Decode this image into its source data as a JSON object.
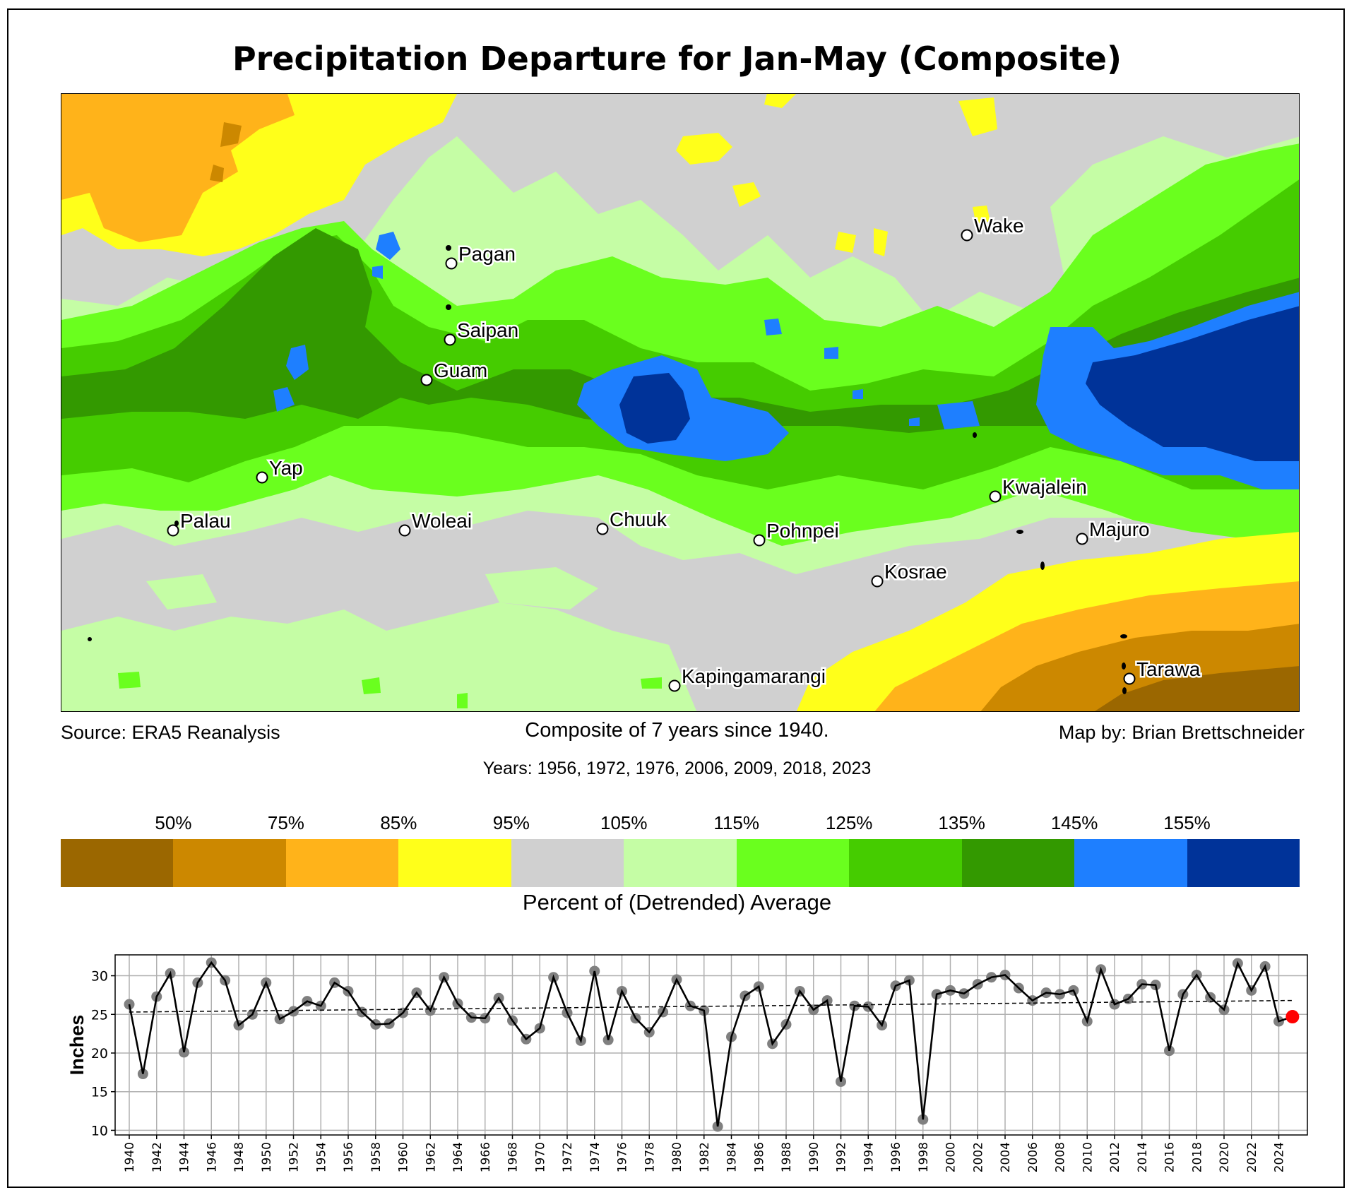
{
  "title": "Precipitation Departure for Jan-May (Composite)",
  "captions": {
    "source": "Source: ERA5 Reanalysis",
    "composite": "Composite of 7 years since 1940.",
    "map_by": "Map by: Brian Brettschneider",
    "years": "Years: 1956, 1972, 1976, 2006, 2009, 2018, 2023"
  },
  "colorbar": {
    "label": "Percent of (Detrended) Average",
    "ticks": [
      "50%",
      "75%",
      "85%",
      "95%",
      "105%",
      "115%",
      "125%",
      "135%",
      "145%",
      "155%"
    ],
    "colors": [
      "#9b6700",
      "#cc8800",
      "#ffb31a",
      "#ffff1a",
      "#d0d0d0",
      "#c5fda5",
      "#6aff1e",
      "#45cc00",
      "#339900",
      "#1e7fff",
      "#003399"
    ]
  },
  "stations": [
    {
      "name": "Pagan"
    },
    {
      "name": "Saipan"
    },
    {
      "name": "Guam"
    },
    {
      "name": "Wake"
    },
    {
      "name": "Yap"
    },
    {
      "name": "Palau"
    },
    {
      "name": "Woleai"
    },
    {
      "name": "Chuuk"
    },
    {
      "name": "Pohnpei"
    },
    {
      "name": "Kwajalein"
    },
    {
      "name": "Majuro"
    },
    {
      "name": "Kosrae"
    },
    {
      "name": "Kapingamarangi"
    },
    {
      "name": "Tarawa"
    }
  ],
  "chart_data": {
    "type": "line",
    "title": "",
    "xlabel": "",
    "ylabel": "Inches",
    "xlim": [
      1939,
      2026
    ],
    "ylim": [
      9.4,
      32.7
    ],
    "yticks": [
      10,
      15,
      20,
      25,
      30
    ],
    "xticks": [
      1940,
      1942,
      1944,
      1946,
      1948,
      1950,
      1952,
      1954,
      1956,
      1958,
      1960,
      1962,
      1964,
      1966,
      1968,
      1970,
      1972,
      1974,
      1976,
      1978,
      1980,
      1982,
      1984,
      1986,
      1988,
      1990,
      1992,
      1994,
      1996,
      1998,
      2000,
      2002,
      2004,
      2006,
      2008,
      2010,
      2012,
      2014,
      2016,
      2018,
      2020,
      2022,
      2024
    ],
    "grid": true,
    "x": [
      1940,
      1941,
      1942,
      1943,
      1944,
      1945,
      1946,
      1947,
      1948,
      1949,
      1950,
      1951,
      1952,
      1953,
      1954,
      1955,
      1956,
      1957,
      1958,
      1959,
      1960,
      1961,
      1962,
      1963,
      1964,
      1965,
      1966,
      1967,
      1968,
      1969,
      1970,
      1971,
      1972,
      1973,
      1974,
      1975,
      1976,
      1977,
      1978,
      1979,
      1980,
      1981,
      1982,
      1983,
      1984,
      1985,
      1986,
      1987,
      1988,
      1989,
      1990,
      1991,
      1992,
      1993,
      1994,
      1995,
      1996,
      1997,
      1998,
      1999,
      2000,
      2001,
      2002,
      2003,
      2004,
      2005,
      2006,
      2007,
      2008,
      2009,
      2010,
      2011,
      2012,
      2013,
      2014,
      2015,
      2016,
      2017,
      2018,
      2019,
      2020,
      2021,
      2022,
      2023,
      2024,
      2025
    ],
    "series": [
      {
        "name": "Jan-May precipitation",
        "values": [
          26.3,
          17.3,
          27.3,
          30.3,
          20.1,
          29.1,
          31.7,
          29.4,
          23.6,
          25.0,
          29.1,
          24.4,
          25.4,
          26.7,
          26.1,
          29.1,
          28.0,
          25.3,
          23.7,
          23.8,
          25.2,
          27.8,
          25.5,
          29.8,
          26.4,
          24.6,
          24.5,
          27.1,
          24.2,
          21.8,
          23.2,
          29.8,
          25.2,
          21.6,
          30.6,
          21.7,
          28.0,
          24.5,
          22.7,
          25.3,
          29.5,
          26.1,
          25.5,
          10.5,
          22.1,
          27.4,
          28.6,
          21.2,
          23.7,
          28.0,
          25.6,
          26.8,
          16.3,
          26.1,
          26.0,
          23.6,
          28.7,
          29.4,
          11.4,
          27.6,
          28.1,
          27.7,
          28.9,
          29.8,
          30.1,
          28.4,
          26.8,
          27.8,
          27.6,
          28.1,
          24.1,
          30.8,
          26.3,
          27.0,
          28.9,
          28.8,
          20.3,
          27.6,
          30.1,
          27.2,
          25.6,
          31.6,
          28.1,
          31.2,
          24.1,
          24.7
        ],
        "color": "#000000",
        "marker_color": "#808080"
      },
      {
        "name": "Trend",
        "x": [
          1940,
          2025
        ],
        "values": [
          25.3,
          26.8
        ],
        "style": "dashed",
        "color": "#000000"
      }
    ],
    "highlight": {
      "x": 2025,
      "value": 24.7,
      "color": "#ff0000"
    }
  }
}
